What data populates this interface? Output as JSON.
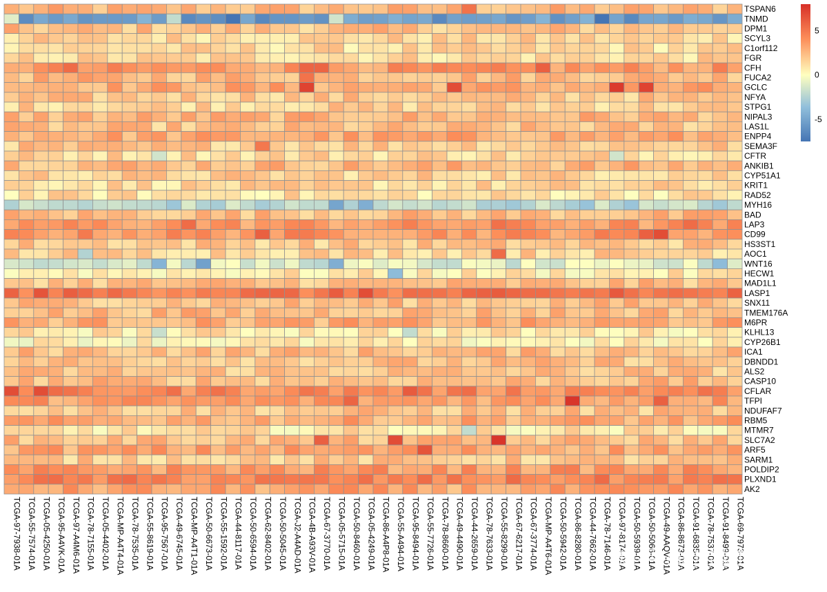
{
  "watermark": "知乎 @谈越工具人",
  "chart_data": {
    "type": "heatmap",
    "colors": {
      "low": "#4575b4",
      "mid": "#ffffbf",
      "high": "#d73027",
      "border": "#919191"
    },
    "colorbar": {
      "min": -7.5,
      "max": 8,
      "ticks": [
        5,
        0,
        -5
      ],
      "position": "right"
    },
    "row_means": {
      "TSPAN6": 2.5,
      "TNMD": -5.3,
      "DPM1": 2.2,
      "SCYL3": 1.5,
      "C1orf112": 1.3,
      "FGR": 1.4,
      "CFH": 3.6,
      "FUCA2": 2.6,
      "GCLC": 3.0,
      "NFYA": 2.0,
      "STPG1": 1.7,
      "NIPAL3": 2.6,
      "LAS1L": 2.1,
      "ENPP4": 3.0,
      "SEMA3F": 2.0,
      "CFTR": 1.5,
      "ANKIB1": 2.6,
      "CYP51A1": 1.7,
      "KRIT1": 1.4,
      "RAD52": 1.1,
      "MYH16": -2.2,
      "BAD": 2.4,
      "LAP3": 3.6,
      "CD99": 3.8,
      "HS3ST1": 2.0,
      "AOC1": 1.7,
      "WNT16": -1.2,
      "HECW1": 0.7,
      "MAD1L1": 2.3,
      "LASP1": 5.0,
      "SNX11": 2.3,
      "TMEM176A": 2.5,
      "M6PR": 2.9,
      "KLHL13": 0.9,
      "CYP26B1": 0.5,
      "ICA1": 2.4,
      "DBNDD1": 2.2,
      "ALS2": 2.1,
      "CASP10": 2.4,
      "CFLAR": 4.3,
      "TFPI": 3.5,
      "NDUFAF7": 2.1,
      "RBM5": 3.0,
      "MTMR7": 0.9,
      "SLC7A2": 2.3,
      "ARF5": 3.2,
      "SARM1": 1.9,
      "POLDIP2": 3.6,
      "PLXND1": 4.4,
      "AK2": 3.2
    },
    "hotspots": [
      {
        "gene": "GCLC",
        "col": 20,
        "value": 7.2
      },
      {
        "gene": "GCLC",
        "col": 30,
        "value": 6.8
      },
      {
        "gene": "GCLC",
        "col": 41,
        "value": 7.6
      },
      {
        "gene": "GCLC",
        "col": 43,
        "value": 7.2
      },
      {
        "gene": "CFH",
        "col": 4,
        "value": 5.5
      },
      {
        "gene": "CFH",
        "col": 36,
        "value": 6.0
      },
      {
        "gene": "CFH",
        "col": 20,
        "value": 5.8
      },
      {
        "gene": "CFH",
        "col": 21,
        "value": 5.8
      },
      {
        "gene": "FUCA2",
        "col": 20,
        "value": 5.2
      },
      {
        "gene": "SEMA3F",
        "col": 17,
        "value": 5.0
      },
      {
        "gene": "LAP3",
        "col": 12,
        "value": 5.5
      },
      {
        "gene": "LAP3",
        "col": 33,
        "value": 5.3
      },
      {
        "gene": "LAP3",
        "col": 46,
        "value": 5.5
      },
      {
        "gene": "CD99",
        "col": 17,
        "value": 6.0
      },
      {
        "gene": "CD99",
        "col": 43,
        "value": 6.0
      },
      {
        "gene": "CD99",
        "col": 44,
        "value": 6.8
      },
      {
        "gene": "CD99",
        "col": 50,
        "value": 5.8
      },
      {
        "gene": "LASP1",
        "col": 2,
        "value": 6.5
      },
      {
        "gene": "LASP1",
        "col": 24,
        "value": 6.8
      },
      {
        "gene": "LASP1",
        "col": 41,
        "value": 6.3
      },
      {
        "gene": "CFLAR",
        "col": 0,
        "value": 6.8
      },
      {
        "gene": "CFLAR",
        "col": 2,
        "value": 6.8
      },
      {
        "gene": "CFLAR",
        "col": 27,
        "value": 6.2
      },
      {
        "gene": "TFPI",
        "col": 23,
        "value": 5.8
      },
      {
        "gene": "TFPI",
        "col": 38,
        "value": 7.8
      },
      {
        "gene": "TFPI",
        "col": 44,
        "value": 6.0
      },
      {
        "gene": "SLC7A2",
        "col": 21,
        "value": 6.0
      },
      {
        "gene": "SLC7A2",
        "col": 26,
        "value": 6.8
      },
      {
        "gene": "SLC7A2",
        "col": 33,
        "value": 7.8
      },
      {
        "gene": "SLC7A2",
        "col": 50,
        "value": 6.5
      },
      {
        "gene": "ARF5",
        "col": 28,
        "value": 6.5
      },
      {
        "gene": "AOC1",
        "col": 33,
        "value": 5.5
      },
      {
        "gene": "WNT16",
        "col": 13,
        "value": -5.2
      },
      {
        "gene": "WNT16",
        "col": 10,
        "value": -4.2
      },
      {
        "gene": "WNT16",
        "col": 22,
        "value": -4.5
      },
      {
        "gene": "WNT16",
        "col": 48,
        "value": -3.8
      },
      {
        "gene": "HECW1",
        "col": 26,
        "value": -3.8
      },
      {
        "gene": "MYH16",
        "col": 22,
        "value": -5.0
      },
      {
        "gene": "MYH16",
        "col": 24,
        "value": -4.5
      },
      {
        "gene": "KLHL13",
        "col": 27,
        "value": -2.0
      },
      {
        "gene": "KLHL13",
        "col": 10,
        "value": -1.8
      },
      {
        "gene": "AOC1",
        "col": 5,
        "value": -2.5
      },
      {
        "gene": "CFTR",
        "col": 10,
        "value": -1.5
      },
      {
        "gene": "CFTR",
        "col": 41,
        "value": -1.5
      },
      {
        "gene": "MTMR7",
        "col": 31,
        "value": -2.0
      },
      {
        "gene": "TNMD",
        "col": 0,
        "value": -1.0
      },
      {
        "gene": "TNMD",
        "col": 22,
        "value": -1.5
      },
      {
        "gene": "TNMD",
        "col": 11,
        "value": -2.0
      },
      {
        "gene": "TNMD",
        "col": 40,
        "value": -8.5
      },
      {
        "gene": "TNMD",
        "col": 15,
        "value": -8.0
      },
      {
        "gene": "TSPAN6",
        "col": 31,
        "value": 5.2
      }
    ],
    "rows": [
      "TSPAN6",
      "TNMD",
      "DPM1",
      "SCYL3",
      "C1orf112",
      "FGR",
      "CFH",
      "FUCA2",
      "GCLC",
      "NFYA",
      "STPG1",
      "NIPAL3",
      "LAS1L",
      "ENPP4",
      "SEMA3F",
      "CFTR",
      "ANKIB1",
      "CYP51A1",
      "KRIT1",
      "RAD52",
      "MYH16",
      "BAD",
      "LAP3",
      "CD99",
      "HS3ST1",
      "AOC1",
      "WNT16",
      "HECW1",
      "MAD1L1",
      "LASP1",
      "SNX11",
      "TMEM176A",
      "M6PR",
      "KLHL13",
      "CYP26B1",
      "ICA1",
      "DBNDD1",
      "ALS2",
      "CASP10",
      "CFLAR",
      "TFPI",
      "NDUFAF7",
      "RBM5",
      "MTMR7",
      "SLC7A2",
      "ARF5",
      "SARM1",
      "POLDIP2",
      "PLXND1",
      "AK2"
    ],
    "columns": [
      "TCGA-97-7938-01A",
      "TCGA-55-7574-01A",
      "TCGA-05-4250-01A",
      "TCGA-95-A4VK-01A",
      "TCGA-97-A4M6-01A",
      "TCGA-78-7155-01A",
      "TCGA-05-4402-01A",
      "TCGA-MP-A4T4-01A",
      "TCGA-78-7535-01A",
      "TCGA-55-8619-01A",
      "TCGA-95-7567-01A",
      "TCGA-49-6745-01A",
      "TCGA-MP-A4T1-01A",
      "TCGA-50-6673-01A",
      "TCGA-55-1592-01A",
      "TCGA-44-8117-01A",
      "TCGA-50-6594-01A",
      "TCGA-62-8402-01A",
      "TCGA-50-5045-01A",
      "TCGA-J2-A4AD-01A",
      "TCGA-4B-A93V-01A",
      "TCGA-67-3770-01A",
      "TCGA-05-5715-01A",
      "TCGA-50-8460-01A",
      "TCGA-05-4249-01A",
      "TCGA-86-A4P8-01A",
      "TCGA-55-A494-01A",
      "TCGA-95-8494-01A",
      "TCGA-55-7726-01A",
      "TCGA-78-8660-01A",
      "TCGA-49-4490-01A",
      "TCGA-44-2659-01A",
      "TCGA-78-7633-01A",
      "TCGA-55-8299-01A",
      "TCGA-67-6217-01A",
      "TCGA-67-3774-01A",
      "TCGA-MP-A4T6-01A",
      "TCGA-50-5942-01A",
      "TCGA-86-8280-01A",
      "TCGA-44-7662-01A",
      "TCGA-78-7146-01A",
      "TCGA-97-8174-01A",
      "TCGA-50-5939-01A",
      "TCGA-50-5066-01A",
      "TCGA-49-AAQV-01A",
      "TCGA-86-8673-01A",
      "TCGA-91-6835-01A",
      "TCGA-78-7537-01A",
      "TCGA-91-8499-01A",
      "TCGA-69-7973-01A"
    ]
  }
}
